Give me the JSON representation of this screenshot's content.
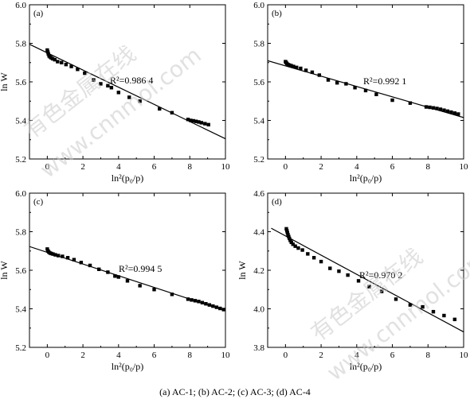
{
  "caption": "(a) AC-1;  (b) AC-2;  (c) AC-3;  (d) AC-4",
  "watermark": {
    "line1": "有色金属在线",
    "line2": "www.cnnmol.com"
  },
  "chart_data": [
    {
      "type": "scatter",
      "panel_label": "(a)",
      "xlabel": "ln²(p₀/p)",
      "ylabel": "ln W",
      "xlim": [
        -1,
        10
      ],
      "ylim": [
        5.2,
        6.0
      ],
      "xticks": [
        0,
        2,
        4,
        6,
        8,
        10
      ],
      "yticks": [
        5.2,
        5.4,
        5.6,
        5.8,
        6.0
      ],
      "annotation": "R²=0.986 4",
      "fit_line": {
        "x": [
          -1,
          10
        ],
        "y": [
          5.795,
          5.305
        ]
      },
      "points": {
        "x": [
          0.0,
          0.03,
          0.06,
          0.1,
          0.15,
          0.22,
          0.3,
          0.42,
          0.58,
          0.8,
          1.05,
          1.35,
          1.7,
          2.1,
          2.6,
          3.0,
          3.4,
          3.6,
          4.0,
          4.6,
          5.2,
          6.3,
          7.0,
          7.9,
          8.05,
          8.2,
          8.35,
          8.5,
          8.65,
          8.85,
          9.05
        ],
        "y": [
          5.765,
          5.755,
          5.745,
          5.735,
          5.73,
          5.725,
          5.72,
          5.715,
          5.705,
          5.7,
          5.69,
          5.68,
          5.665,
          5.645,
          5.61,
          5.59,
          5.58,
          5.57,
          5.545,
          5.52,
          5.5,
          5.46,
          5.44,
          5.405,
          5.4,
          5.398,
          5.395,
          5.392,
          5.388,
          5.383,
          5.378
        ]
      }
    },
    {
      "type": "scatter",
      "panel_label": "(b)",
      "xlabel": "ln²(p₀/p)",
      "ylabel": "",
      "xlim": [
        -1,
        10
      ],
      "ylim": [
        5.2,
        6.0
      ],
      "xticks": [
        0,
        2,
        4,
        6,
        8,
        10
      ],
      "yticks": [
        5.2,
        5.4,
        5.6,
        5.8,
        6.0
      ],
      "annotation": "R²=0.992 1",
      "fit_line": {
        "x": [
          -1,
          10
        ],
        "y": [
          5.71,
          5.415
        ]
      },
      "points": {
        "x": [
          0.0,
          0.04,
          0.08,
          0.14,
          0.22,
          0.32,
          0.45,
          0.62,
          0.85,
          1.15,
          1.5,
          1.9,
          2.4,
          2.9,
          3.4,
          3.9,
          4.5,
          5.1,
          6.0,
          7.0,
          7.9,
          8.1,
          8.3,
          8.5,
          8.7,
          8.9,
          9.1,
          9.3,
          9.5,
          9.7
        ],
        "y": [
          5.705,
          5.7,
          5.695,
          5.69,
          5.687,
          5.684,
          5.68,
          5.675,
          5.67,
          5.66,
          5.65,
          5.635,
          5.61,
          5.595,
          5.59,
          5.57,
          5.555,
          5.535,
          5.505,
          5.49,
          5.47,
          5.468,
          5.465,
          5.462,
          5.458,
          5.453,
          5.448,
          5.443,
          5.438,
          5.433
        ]
      }
    },
    {
      "type": "scatter",
      "panel_label": "(c)",
      "xlabel": "ln²(p₀/p)",
      "ylabel": "ln W",
      "xlim": [
        -1,
        10
      ],
      "ylim": [
        5.2,
        6.0
      ],
      "xticks": [
        0,
        2,
        4,
        6,
        8,
        10
      ],
      "yticks": [
        5.2,
        5.4,
        5.6,
        5.8,
        6.0
      ],
      "annotation": "R²=0.994 5",
      "fit_line": {
        "x": [
          -1,
          10
        ],
        "y": [
          5.723,
          5.39
        ]
      },
      "points": {
        "x": [
          0.0,
          0.04,
          0.08,
          0.14,
          0.22,
          0.32,
          0.45,
          0.62,
          0.85,
          1.15,
          1.5,
          1.9,
          2.4,
          2.9,
          3.4,
          3.8,
          4.0,
          4.5,
          5.2,
          6.0,
          7.0,
          7.9,
          8.1,
          8.3,
          8.5,
          8.7,
          8.9,
          9.1,
          9.3,
          9.5,
          9.7,
          9.9
        ],
        "y": [
          5.71,
          5.7,
          5.695,
          5.69,
          5.687,
          5.684,
          5.68,
          5.676,
          5.672,
          5.665,
          5.655,
          5.64,
          5.625,
          5.605,
          5.59,
          5.57,
          5.565,
          5.545,
          5.52,
          5.5,
          5.475,
          5.45,
          5.446,
          5.442,
          5.438,
          5.432,
          5.426,
          5.42,
          5.414,
          5.408,
          5.402,
          5.396
        ]
      }
    },
    {
      "type": "scatter",
      "panel_label": "(d)",
      "xlabel": "ln²(p₀/p)",
      "ylabel": "ln W",
      "xlim": [
        -1,
        10
      ],
      "ylim": [
        3.8,
        4.6
      ],
      "xticks": [
        0,
        2,
        4,
        6,
        8,
        10
      ],
      "yticks": [
        3.8,
        4.0,
        4.2,
        4.4,
        4.6
      ],
      "annotation": "R²=0.970 2",
      "fit_line": {
        "x": [
          -0.8,
          10
        ],
        "y": [
          4.418,
          3.88
        ]
      },
      "points": {
        "x": [
          0.05,
          0.08,
          0.11,
          0.14,
          0.18,
          0.22,
          0.27,
          0.33,
          0.42,
          0.55,
          0.72,
          0.95,
          1.25,
          1.6,
          2.0,
          2.5,
          3.0,
          3.5,
          4.1,
          4.7,
          5.4,
          6.2,
          7.0,
          7.7,
          8.3,
          8.9,
          9.5
        ],
        "y": [
          4.415,
          4.405,
          4.395,
          4.385,
          4.375,
          4.365,
          4.355,
          4.345,
          4.335,
          4.325,
          4.315,
          4.305,
          4.285,
          4.265,
          4.245,
          4.21,
          4.195,
          4.175,
          4.145,
          4.115,
          4.09,
          4.05,
          4.02,
          4.01,
          3.985,
          3.965,
          3.945
        ]
      }
    }
  ]
}
